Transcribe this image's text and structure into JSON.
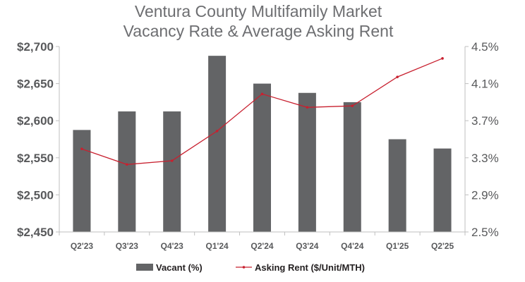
{
  "chart_data": {
    "type": "bar+line",
    "title": [
      "Ventura County Multifamily Market",
      "Vacancy Rate & Average Asking Rent"
    ],
    "categories": [
      "Q2'23",
      "Q3'23",
      "Q4'23",
      "Q1'24",
      "Q2'24",
      "Q3'24",
      "Q4'24",
      "Q1'25",
      "Q2'25"
    ],
    "series": [
      {
        "name": "Vacant (%)",
        "type": "bar",
        "axis": "right",
        "color": "#636466",
        "values": [
          3.6,
          3.8,
          3.8,
          4.4,
          4.1,
          4.0,
          3.9,
          3.5,
          3.4
        ]
      },
      {
        "name": "Asking Rent ($/Unit/MTH)",
        "type": "line",
        "axis": "left",
        "color": "#c8202f",
        "values": [
          2562,
          2541,
          2546,
          2586,
          2636,
          2618,
          2620,
          2659,
          2684
        ]
      }
    ],
    "left_axis": {
      "range": [
        2450,
        2700
      ],
      "ticks": [
        2450,
        2500,
        2550,
        2600,
        2650,
        2700
      ],
      "tick_labels": [
        "$2,450",
        "$2,500",
        "$2,550",
        "$2,600",
        "$2,650",
        "$2,700"
      ]
    },
    "right_axis": {
      "range": [
        2.5,
        4.5
      ],
      "ticks": [
        2.5,
        2.9,
        3.3,
        3.7,
        4.1,
        4.5
      ],
      "tick_labels": [
        "2.5%",
        "2.9%",
        "3.3%",
        "3.7%",
        "4.1%",
        "4.5%"
      ]
    },
    "grid": false,
    "legend": {
      "position": "bottom",
      "entries": [
        "Vacant (%)",
        "Asking Rent ($/Unit/MTH)"
      ]
    }
  }
}
